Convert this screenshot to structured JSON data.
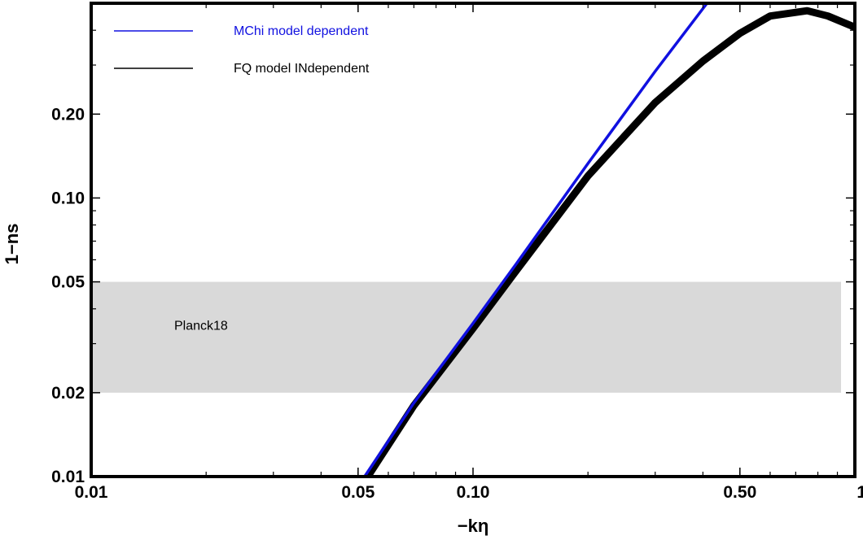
{
  "chart_data": {
    "type": "line",
    "xlabel": "−kη",
    "ylabel": "1−ns",
    "xscale": "log",
    "yscale": "log",
    "xlim": [
      0.01,
      1
    ],
    "ylim": [
      0.01,
      0.5
    ],
    "x_ticks": [
      {
        "value": 0.01,
        "label": "0.01"
      },
      {
        "value": 0.05,
        "label": "0.05"
      },
      {
        "value": 0.1,
        "label": "0.10"
      },
      {
        "value": 0.5,
        "label": "0.50"
      },
      {
        "value": 1,
        "label": "1"
      }
    ],
    "y_ticks": [
      {
        "value": 0.01,
        "label": "0.01"
      },
      {
        "value": 0.02,
        "label": "0.02"
      },
      {
        "value": 0.05,
        "label": "0.05"
      },
      {
        "value": 0.1,
        "label": "0.10"
      },
      {
        "value": 0.2,
        "label": "0.20"
      }
    ],
    "grid": false,
    "legend_position": "top-left",
    "band": {
      "label": "Planck18",
      "y_range": [
        0.02,
        0.05
      ],
      "x_range": [
        0.01,
        0.92
      ],
      "color": "#d9d9d9"
    },
    "series": [
      {
        "name": "MChi model dependent",
        "color": "#1010e0",
        "x": [
          0.052,
          0.07,
          0.1,
          0.13,
          0.2,
          0.3,
          0.41
        ],
        "y": [
          0.01,
          0.0184,
          0.0355,
          0.0582,
          0.133,
          0.285,
          0.5
        ]
      },
      {
        "name": "FQ model INdependent",
        "color": "#000000",
        "x": [
          0.053,
          0.07,
          0.1,
          0.13,
          0.2,
          0.3,
          0.4,
          0.5,
          0.6,
          0.75,
          0.85,
          1.0
        ],
        "y": [
          0.01,
          0.018,
          0.034,
          0.055,
          0.12,
          0.22,
          0.31,
          0.39,
          0.45,
          0.47,
          0.45,
          0.41
        ]
      }
    ]
  }
}
